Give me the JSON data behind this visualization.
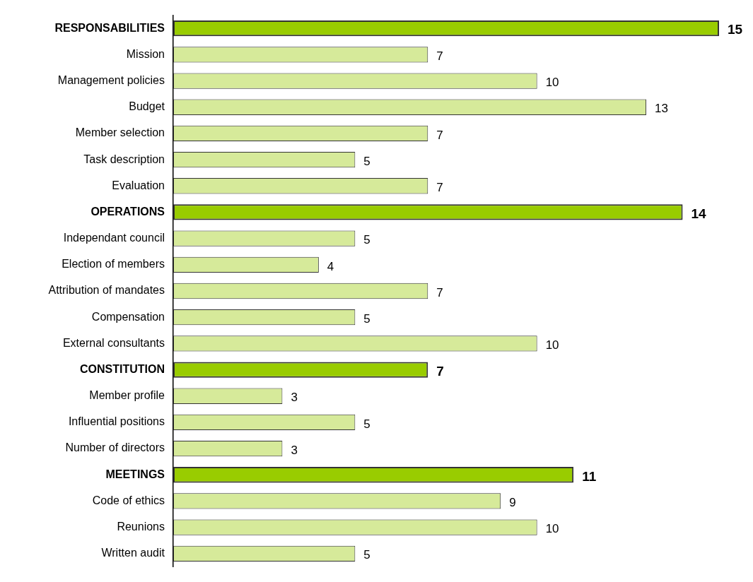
{
  "chart_data": {
    "type": "bar",
    "orientation": "horizontal",
    "categories": [
      "RESPONSABILITIES",
      "Mission",
      "Management policies",
      "Budget",
      "Member selection",
      "Task description",
      "Evaluation",
      "OPERATIONS",
      "Independant council",
      "Election of members",
      "Attribution of mandates",
      "Compensation",
      "External consultants",
      "CONSTITUTION",
      "Member profile",
      "Influential positions",
      "Number of directors",
      "MEETINGS",
      "Code of ethics",
      "Reunions",
      "Written audit"
    ],
    "series": [
      {
        "color": "#99cc00",
        "values": [
          15,
          null,
          null,
          null,
          null,
          null,
          null,
          14,
          null,
          null,
          null,
          null,
          null,
          7,
          null,
          null,
          null,
          11,
          null,
          null,
          null
        ]
      },
      {
        "color": "#d6ea9a",
        "values": [
          null,
          7,
          10,
          13,
          7,
          5,
          7,
          null,
          5,
          4,
          7,
          5,
          10,
          null,
          3,
          5,
          3,
          null,
          9,
          10,
          5
        ]
      }
    ],
    "data_labels": true,
    "tick_labels": "y"
  }
}
